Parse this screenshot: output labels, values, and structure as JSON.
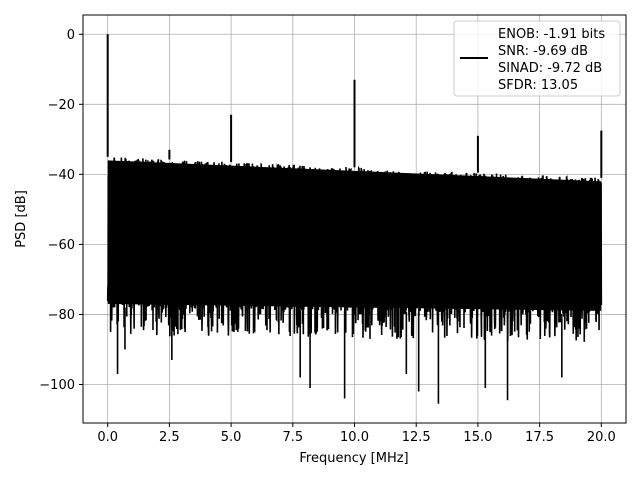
{
  "chart_data": {
    "type": "line",
    "xlabel": "Frequency [MHz]",
    "ylabel": "PSD [dB]",
    "xlim": [
      -1.0,
      21.0
    ],
    "ylim": [
      -111,
      5.5
    ],
    "x_ticks": [
      0.0,
      2.5,
      5.0,
      7.5,
      10.0,
      12.5,
      15.0,
      17.5,
      20.0
    ],
    "x_tick_labels": [
      "0.0",
      "2.5",
      "5.0",
      "7.5",
      "10.0",
      "12.5",
      "15.0",
      "17.5",
      "20.0"
    ],
    "y_ticks": [
      0,
      -20,
      -40,
      -60,
      -80,
      -100
    ],
    "y_tick_labels": [
      "0",
      "−20",
      "−40",
      "−60",
      "−80",
      "−100"
    ],
    "grid": true,
    "legend_position": "top-right",
    "legend_entries": [
      "ENOB: -1.91 bits",
      "SNR: -9.69 dB",
      "SINAD: -9.72 dB",
      "SFDR: 13.05"
    ],
    "series": [
      {
        "color": "#000000",
        "noise_floor_upper_db": [
          -35,
          -41
        ],
        "noise_floor_lower_db": [
          -78,
          -80
        ],
        "peaks": [
          {
            "x": 0.0,
            "y": 0.0
          },
          {
            "x": 2.5,
            "y": -33.0
          },
          {
            "x": 5.0,
            "y": -23.0
          },
          {
            "x": 10.0,
            "y": -13.0
          },
          {
            "x": 15.0,
            "y": -29.0
          },
          {
            "x": 20.0,
            "y": -27.5
          }
        ],
        "dips": [
          {
            "x": 0.4,
            "y": -97
          },
          {
            "x": 0.7,
            "y": -90
          },
          {
            "x": 2.6,
            "y": -93
          },
          {
            "x": 7.8,
            "y": -98
          },
          {
            "x": 8.2,
            "y": -101
          },
          {
            "x": 9.6,
            "y": -104
          },
          {
            "x": 12.1,
            "y": -97
          },
          {
            "x": 12.6,
            "y": -102
          },
          {
            "x": 13.4,
            "y": -105.5
          },
          {
            "x": 15.3,
            "y": -101
          },
          {
            "x": 16.2,
            "y": -104.5
          },
          {
            "x": 18.4,
            "y": -98
          }
        ]
      }
    ]
  }
}
